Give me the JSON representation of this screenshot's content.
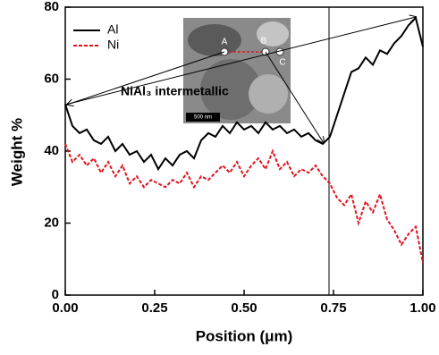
{
  "chart_data": {
    "type": "line",
    "xlabel": "Position (μm)",
    "ylabel": "Weight %",
    "xlim": [
      0,
      1
    ],
    "ylim": [
      0,
      80
    ],
    "xticks": [
      {
        "value": 0,
        "label": "0.00"
      },
      {
        "value": 0.25,
        "label": "0.25"
      },
      {
        "value": 0.5,
        "label": "0.50"
      },
      {
        "value": 0.75,
        "label": "0.75"
      },
      {
        "value": 1,
        "label": "1.00"
      }
    ],
    "yticks": [
      0,
      20,
      40,
      60,
      80
    ],
    "legend": "upper left",
    "x": [
      0,
      0.02,
      0.04,
      0.06,
      0.08,
      0.1,
      0.12,
      0.14,
      0.16,
      0.18,
      0.2,
      0.22,
      0.24,
      0.26,
      0.28,
      0.3,
      0.32,
      0.34,
      0.36,
      0.38,
      0.4,
      0.42,
      0.44,
      0.46,
      0.48,
      0.5,
      0.52,
      0.54,
      0.56,
      0.58,
      0.6,
      0.62,
      0.64,
      0.66,
      0.68,
      0.7,
      0.72,
      0.74,
      0.76,
      0.78,
      0.8,
      0.82,
      0.84,
      0.86,
      0.88,
      0.9,
      0.92,
      0.94,
      0.96,
      0.98,
      1
    ],
    "series": [
      {
        "name": "Al",
        "color": "#000000",
        "dash": false,
        "values": [
          53,
          47,
          45,
          46,
          43,
          42,
          44,
          40,
          42,
          39,
          40,
          37,
          39,
          35,
          38,
          36,
          39,
          40,
          38,
          43,
          45,
          44,
          47,
          45,
          48,
          46,
          47,
          45,
          48,
          46,
          47,
          45,
          46,
          44,
          45,
          43,
          42,
          44,
          50,
          56,
          62,
          63,
          66,
          64,
          68,
          67,
          70,
          72,
          75,
          77,
          69
        ]
      },
      {
        "name": "Ni",
        "color": "#e0141e",
        "dash": true,
        "values": [
          42,
          37,
          39,
          36,
          38,
          34,
          37,
          33,
          36,
          31,
          33,
          30,
          32,
          31,
          30,
          32,
          31,
          34,
          30,
          33,
          32,
          34,
          36,
          34,
          37,
          33,
          36,
          38,
          35,
          40,
          35,
          37,
          33,
          35,
          34,
          36,
          33,
          31,
          27,
          25,
          28,
          20,
          26,
          23,
          28,
          21,
          18,
          14,
          17,
          19,
          9
        ]
      }
    ],
    "annotations": [
      "NiAl₃ intermetallic",
      "A",
      "B",
      "C",
      "500 nm"
    ]
  }
}
